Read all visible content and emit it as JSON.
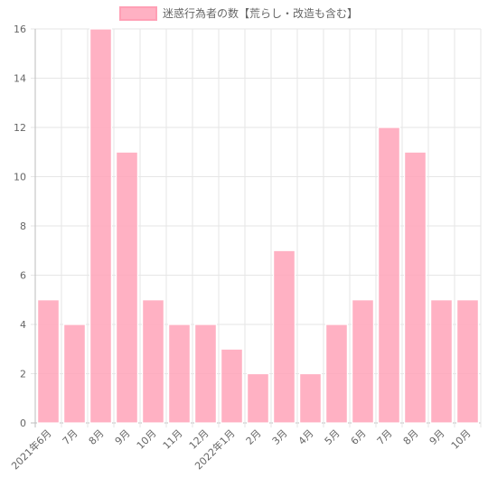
{
  "chart_data": {
    "type": "bar",
    "legend": {
      "label": "迷惑行為者の数【荒らし・改造も含む】",
      "position": "top-center",
      "color": "#ffa3b9"
    },
    "categories": [
      "2021年6月",
      "7月",
      "8月",
      "9月",
      "10月",
      "11月",
      "12月",
      "2022年1月",
      "2月",
      "3月",
      "4月",
      "5月",
      "6月",
      "7月",
      "8月",
      "9月",
      "10月"
    ],
    "series": [
      {
        "name": "迷惑行為者の数【荒らし・改造も含む】",
        "values": [
          5,
          4,
          16,
          11,
          5,
          4,
          4,
          3,
          2,
          7,
          2,
          4,
          5,
          12,
          11,
          5,
          5
        ]
      }
    ],
    "ylim": [
      0,
      16
    ],
    "yticks": [
      0,
      2,
      4,
      6,
      8,
      10,
      12,
      14,
      16
    ],
    "grid": true,
    "bar_color": "#ffa3b9"
  }
}
